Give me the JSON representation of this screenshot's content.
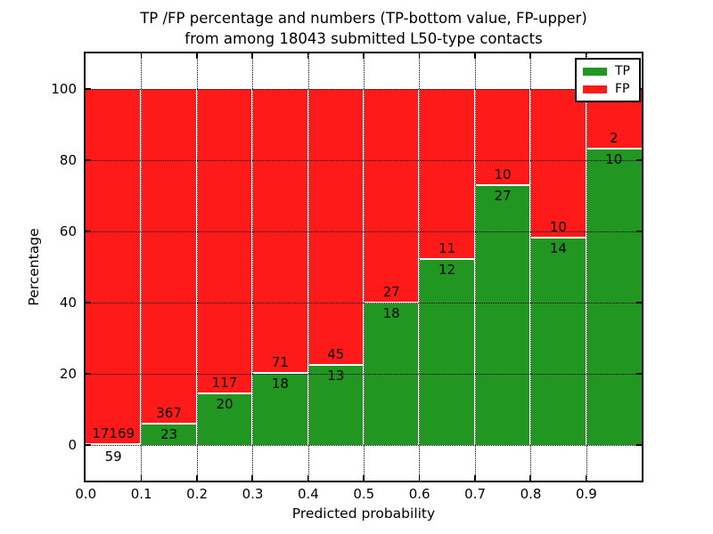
{
  "chart_data": {
    "type": "bar",
    "variant": "stacked-percentage-histogram",
    "title_line1": "TP /FP percentage and numbers (TP-bottom value, FP-upper)",
    "title_line2": "from among 18043 submitted L50-type contacts",
    "total_submitted": 18043,
    "xlabel": "Predicted probability",
    "ylabel": "Percentage",
    "xlim": [
      0.0,
      1.0
    ],
    "ylim": [
      -10,
      110
    ],
    "bin_width": 0.1,
    "bin_starts": [
      0.0,
      0.1,
      0.2,
      0.3,
      0.4,
      0.5,
      0.6,
      0.7,
      0.8,
      0.9
    ],
    "x_tick_labels": [
      "0.0",
      "0.1",
      "0.2",
      "0.3",
      "0.4",
      "0.5",
      "0.6",
      "0.7",
      "0.8",
      "0.9"
    ],
    "y_tick_values": [
      0,
      20,
      40,
      60,
      80,
      100
    ],
    "grid": "dotted",
    "series": [
      {
        "name": "TP",
        "color": "#219721",
        "position": "bottom",
        "counts": [
          59,
          23,
          20,
          18,
          13,
          18,
          12,
          27,
          14,
          10
        ]
      },
      {
        "name": "FP",
        "color": "#ff1a1a",
        "position": "top",
        "counts": [
          17169,
          367,
          117,
          71,
          45,
          27,
          11,
          10,
          10,
          2
        ]
      }
    ],
    "tp_percent_computed": [
      0.34,
      5.9,
      14.6,
      20.2,
      22.4,
      40.0,
      52.2,
      73.0,
      58.3,
      83.3
    ],
    "legend": {
      "position": "upper right",
      "entries": [
        "TP",
        "FP"
      ]
    }
  }
}
